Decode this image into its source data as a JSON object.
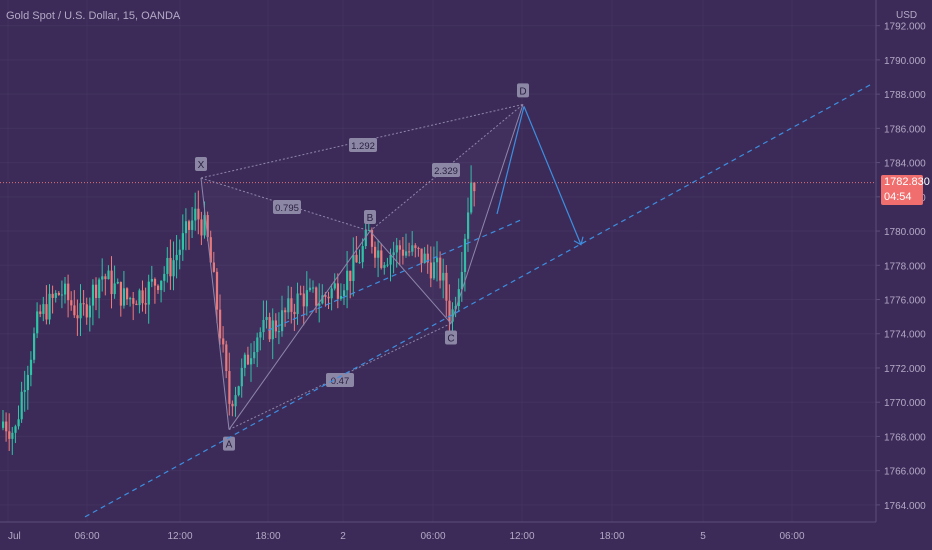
{
  "header": {
    "title": "Gold Spot / U.S. Dollar, 15, OANDA",
    "currency": "USD"
  },
  "price_badge": {
    "price": "1782.830",
    "countdown": "04:54"
  },
  "colors": {
    "background": "#3c2b58",
    "grid": "#4a3a66",
    "bull_candle": "#2ec4a6",
    "bear_candle": "#f07a7a",
    "pattern_line": "#8e86aa",
    "projection_line": "#3d8ee0",
    "price_line": "#f07a7a",
    "axis_text": "#b3a9c6"
  },
  "chart_data": {
    "type": "candlestick",
    "symbol": "Gold Spot / U.S. Dollar",
    "interval": "15",
    "source": "OANDA",
    "last_price": 1782.83,
    "y_axis": {
      "min": 1763,
      "max": 1793.5,
      "ticks": [
        "1792.000",
        "1790.000",
        "1788.000",
        "1786.000",
        "1784.000",
        "1782.000",
        "1780.000",
        "1778.000",
        "1776.000",
        "1774.000",
        "1772.000",
        "1770.000",
        "1768.000",
        "1766.000",
        "1764.000"
      ]
    },
    "x_axis": {
      "ticks": [
        "Jul",
        "06:00",
        "12:00",
        "18:00",
        "2",
        "06:00",
        "12:00",
        "18:00",
        "5",
        "06:00"
      ]
    },
    "harmonic_points": [
      {
        "label": "X",
        "price": 1783.1
      },
      {
        "label": "A",
        "price": 1768.4
      },
      {
        "label": "B",
        "price": 1780.0
      },
      {
        "label": "C",
        "price": 1774.6
      },
      {
        "label": "D",
        "price": 1787.4
      }
    ],
    "ratios": [
      "1.292",
      "0.795",
      "2.329",
      "0.47"
    ],
    "projection": {
      "from_price": 1787.4,
      "to_price": 1779.2
    }
  }
}
